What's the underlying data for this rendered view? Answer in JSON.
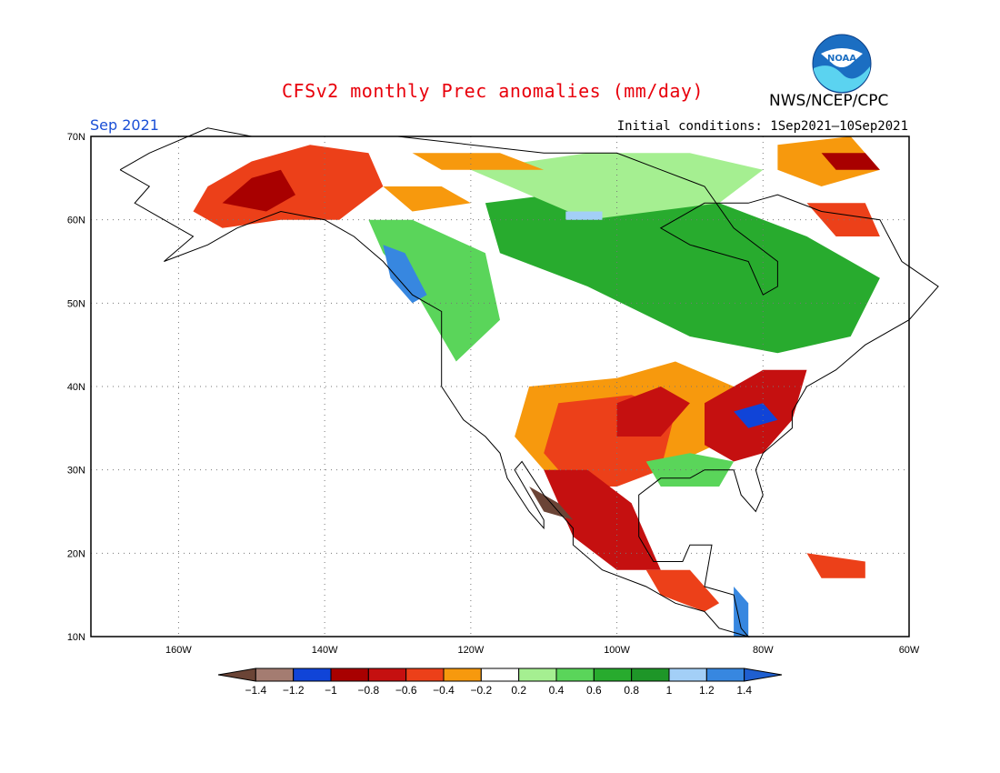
{
  "header": {
    "title": "CFSv2 monthly Prec anomalies (mm/day)",
    "agency": "NWS/NCEP/CPC",
    "logo_text": "NOAA",
    "month": "Sep 2021",
    "initial_conditions": "Initial conditions: 1Sep2021–10Sep2021"
  },
  "map": {
    "lon_range": [
      -172,
      -60
    ],
    "lat_range": [
      10,
      70
    ],
    "lat_labels": [
      "70N",
      "60N",
      "50N",
      "40N",
      "30N",
      "20N",
      "10N"
    ],
    "lon_labels": [
      "160W",
      "140W",
      "120W",
      "100W",
      "80W",
      "60W"
    ],
    "grid": "dotted"
  },
  "colorbar": {
    "labels": [
      "−1.4",
      "−1.2",
      "−1",
      "−0.8",
      "−0.6",
      "−0.4",
      "−0.2",
      "0.2",
      "0.4",
      "0.6",
      "0.8",
      "1",
      "1.2",
      "1.4"
    ],
    "colors": [
      "#6b4436",
      "#a47c71",
      "#1044d8",
      "#a80000",
      "#c51010",
      "#ec4019",
      "#f7990d",
      "#ffffff",
      "#a5ef91",
      "#5ad55a",
      "#28ab2e",
      "#1e9628",
      "#a3cff7",
      "#3787e0",
      "#1f5fd0"
    ]
  },
  "anomaly_regions": [
    {
      "name": "Alaska dry",
      "color": "#ec4019",
      "points": [
        [
          -158,
          61
        ],
        [
          -156,
          64
        ],
        [
          -150,
          67
        ],
        [
          -142,
          69
        ],
        [
          -134,
          68
        ],
        [
          -132,
          64
        ],
        [
          -138,
          60
        ],
        [
          -146,
          60
        ],
        [
          -154,
          59
        ]
      ]
    },
    {
      "name": "Alaska core",
      "color": "#a80000",
      "points": [
        [
          -154,
          62
        ],
        [
          -150,
          65
        ],
        [
          -146,
          66
        ],
        [
          -144,
          63
        ],
        [
          -148,
          61
        ]
      ]
    },
    {
      "name": "NW Canada",
      "color": "#f7990d",
      "points": [
        [
          -132,
          64
        ],
        [
          -124,
          64
        ],
        [
          -120,
          62
        ],
        [
          -128,
          61
        ]
      ]
    },
    {
      "name": "Pacific NW wet",
      "color": "#5ad55a",
      "points": [
        [
          -134,
          60
        ],
        [
          -128,
          60
        ],
        [
          -118,
          56
        ],
        [
          -116,
          48
        ],
        [
          -122,
          43
        ],
        [
          -124,
          46
        ],
        [
          -128,
          52
        ],
        [
          -132,
          56
        ]
      ]
    },
    {
      "name": "BC coast very wet",
      "color": "#3787e0",
      "points": [
        [
          -132,
          57
        ],
        [
          -129,
          56
        ],
        [
          -126,
          51
        ],
        [
          -128,
          50
        ],
        [
          -131,
          53
        ]
      ]
    },
    {
      "name": "Canada wet band",
      "color": "#28ab2e",
      "points": [
        [
          -118,
          62
        ],
        [
          -100,
          64
        ],
        [
          -86,
          62
        ],
        [
          -74,
          58
        ],
        [
          -64,
          53
        ],
        [
          -68,
          46
        ],
        [
          -78,
          44
        ],
        [
          -90,
          46
        ],
        [
          -104,
          52
        ],
        [
          -116,
          56
        ]
      ]
    },
    {
      "name": "Hudson light wet",
      "color": "#a5ef91",
      "points": [
        [
          -120,
          66
        ],
        [
          -104,
          68
        ],
        [
          -90,
          68
        ],
        [
          -80,
          66
        ],
        [
          -86,
          62
        ],
        [
          -104,
          60
        ]
      ]
    },
    {
      "name": "Hudson blue",
      "color": "#a3cff7",
      "points": [
        [
          -107,
          61
        ],
        [
          -102,
          61
        ],
        [
          -102,
          60
        ],
        [
          -107,
          60
        ]
      ]
    },
    {
      "name": "Plains dry",
      "color": "#f7990d",
      "points": [
        [
          -112,
          40
        ],
        [
          -100,
          41
        ],
        [
          -92,
          43
        ],
        [
          -84,
          40
        ],
        [
          -80,
          36
        ],
        [
          -84,
          34
        ],
        [
          -94,
          30
        ],
        [
          -104,
          28
        ],
        [
          -110,
          30
        ],
        [
          -114,
          34
        ]
      ]
    },
    {
      "name": "Southern plains very dry",
      "color": "#ec4019",
      "points": [
        [
          -108,
          38
        ],
        [
          -98,
          39
        ],
        [
          -92,
          37
        ],
        [
          -94,
          30
        ],
        [
          -100,
          28
        ],
        [
          -106,
          28
        ],
        [
          -110,
          32
        ]
      ]
    },
    {
      "name": "Midwest dry core",
      "color": "#c51010",
      "points": [
        [
          -100,
          38
        ],
        [
          -94,
          40
        ],
        [
          -90,
          38
        ],
        [
          -94,
          34
        ],
        [
          -100,
          34
        ]
      ]
    },
    {
      "name": "SE dry",
      "color": "#c51010",
      "points": [
        [
          -88,
          38
        ],
        [
          -80,
          42
        ],
        [
          -74,
          42
        ],
        [
          -76,
          36
        ],
        [
          -80,
          32
        ],
        [
          -84,
          31
        ],
        [
          -88,
          33
        ]
      ]
    },
    {
      "name": "Appalachian wet",
      "color": "#1044d8",
      "points": [
        [
          -84,
          37
        ],
        [
          -80,
          38
        ],
        [
          -78,
          36
        ],
        [
          -82,
          35
        ]
      ]
    },
    {
      "name": "Gulf wet",
      "color": "#5ad55a",
      "points": [
        [
          -96,
          31
        ],
        [
          -90,
          32
        ],
        [
          -84,
          31
        ],
        [
          -86,
          28
        ],
        [
          -94,
          28
        ]
      ]
    },
    {
      "name": "Mexico dry",
      "color": "#c51010",
      "points": [
        [
          -110,
          30
        ],
        [
          -104,
          30
        ],
        [
          -98,
          26
        ],
        [
          -96,
          22
        ],
        [
          -94,
          18
        ],
        [
          -100,
          18
        ],
        [
          -106,
          22
        ]
      ]
    },
    {
      "name": "Mexico SW brown",
      "color": "#6b4436",
      "points": [
        [
          -112,
          28
        ],
        [
          -108,
          26
        ],
        [
          -106,
          24
        ],
        [
          -110,
          25
        ]
      ]
    },
    {
      "name": "Central America",
      "color": "#ec4019",
      "points": [
        [
          -96,
          18
        ],
        [
          -90,
          18
        ],
        [
          -86,
          14
        ],
        [
          -88,
          13
        ],
        [
          -94,
          15
        ]
      ]
    },
    {
      "name": "Central America wet",
      "color": "#3787e0",
      "points": [
        [
          -84,
          16
        ],
        [
          -82,
          14
        ],
        [
          -82,
          10
        ],
        [
          -84,
          10
        ]
      ]
    },
    {
      "name": "Greenland dry",
      "color": "#f7990d",
      "points": [
        [
          -78,
          69
        ],
        [
          -68,
          70
        ],
        [
          -64,
          66
        ],
        [
          -72,
          64
        ],
        [
          -78,
          66
        ]
      ]
    },
    {
      "name": "Greenland core",
      "color": "#a80000",
      "points": [
        [
          -72,
          68
        ],
        [
          -66,
          68
        ],
        [
          -64,
          66
        ],
        [
          -70,
          66
        ]
      ]
    },
    {
      "name": "Labrador dry",
      "color": "#ec4019",
      "points": [
        [
          -74,
          62
        ],
        [
          -66,
          62
        ],
        [
          -64,
          58
        ],
        [
          -70,
          58
        ]
      ]
    },
    {
      "name": "Caribbean dry",
      "color": "#ec4019",
      "points": [
        [
          -74,
          20
        ],
        [
          -66,
          19
        ],
        [
          -66,
          17
        ],
        [
          -72,
          17
        ]
      ]
    },
    {
      "name": "Arctic orange",
      "color": "#f7990d",
      "points": [
        [
          -128,
          68
        ],
        [
          -116,
          68
        ],
        [
          -110,
          66
        ],
        [
          -124,
          66
        ]
      ]
    }
  ],
  "coastlines": [
    {
      "name": "north-america",
      "points": [
        [
          -168,
          66
        ],
        [
          -164,
          68
        ],
        [
          -156,
          71
        ],
        [
          -150,
          70
        ],
        [
          -140,
          70
        ],
        [
          -130,
          70
        ],
        [
          -120,
          69
        ],
        [
          -110,
          68
        ],
        [
          -100,
          68
        ],
        [
          -94,
          66
        ],
        [
          -88,
          64
        ],
        [
          -84,
          59
        ],
        [
          -78,
          55
        ],
        [
          -78,
          52
        ],
        [
          -80,
          51
        ],
        [
          -82,
          55
        ],
        [
          -90,
          57
        ],
        [
          -94,
          59
        ],
        [
          -88,
          62
        ],
        [
          -82,
          62
        ],
        [
          -78,
          63
        ],
        [
          -72,
          61
        ],
        [
          -64,
          60
        ],
        [
          -61,
          55
        ],
        [
          -56,
          52
        ],
        [
          -60,
          48
        ],
        [
          -66,
          45
        ],
        [
          -70,
          42
        ],
        [
          -74,
          40
        ],
        [
          -76,
          37
        ],
        [
          -76,
          35
        ],
        [
          -80,
          32
        ],
        [
          -81,
          30
        ],
        [
          -80,
          27
        ],
        [
          -81,
          25
        ],
        [
          -83,
          27
        ],
        [
          -84,
          30
        ],
        [
          -88,
          30
        ],
        [
          -90,
          29
        ],
        [
          -94,
          29
        ],
        [
          -97,
          27
        ],
        [
          -97,
          22
        ],
        [
          -95,
          19
        ],
        [
          -91,
          19
        ],
        [
          -90,
          21
        ],
        [
          -87,
          21
        ],
        [
          -88,
          16
        ],
        [
          -84,
          15
        ],
        [
          -83,
          11
        ],
        [
          -82,
          10
        ],
        [
          -86,
          11
        ],
        [
          -88,
          13
        ],
        [
          -92,
          14
        ],
        [
          -96,
          16
        ],
        [
          -102,
          18
        ],
        [
          -106,
          21
        ],
        [
          -106,
          23
        ],
        [
          -110,
          27
        ],
        [
          -113,
          31
        ],
        [
          -114,
          30
        ],
        [
          -112,
          27
        ],
        [
          -110,
          24
        ],
        [
          -110,
          23
        ],
        [
          -112,
          25
        ],
        [
          -115,
          29
        ],
        [
          -116,
          32
        ],
        [
          -118,
          34
        ],
        [
          -121,
          36
        ],
        [
          -124,
          40
        ],
        [
          -124,
          46
        ],
        [
          -124,
          49
        ],
        [
          -128,
          51
        ],
        [
          -132,
          55
        ],
        [
          -136,
          58
        ],
        [
          -140,
          60
        ],
        [
          -146,
          61
        ],
        [
          -152,
          59
        ],
        [
          -156,
          57
        ],
        [
          -162,
          55
        ],
        [
          -158,
          58
        ],
        [
          -162,
          60
        ],
        [
          -166,
          62
        ],
        [
          -164,
          64
        ],
        [
          -168,
          66
        ]
      ]
    }
  ]
}
